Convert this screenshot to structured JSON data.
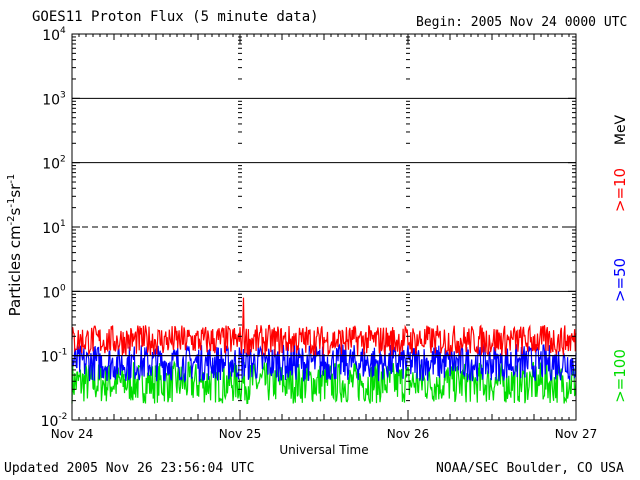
{
  "header": {
    "title": "GOES11 Proton Flux (5 minute data)",
    "begin": "Begin: 2005 Nov 24 0000 UTC"
  },
  "footer": {
    "updated": "Updated 2005 Nov 26 23:56:04 UTC",
    "credit": "NOAA/SEC Boulder, CO USA"
  },
  "chart_data": {
    "type": "line",
    "title": "GOES11 Proton Flux (5 minute data)",
    "xlabel": "Universal Time",
    "ylabel": "Particles cm^-2 s^-1 sr^-1",
    "yscale": "log",
    "ylim": [
      0.01,
      10000
    ],
    "y_tick_labels": [
      "10^-2",
      "10^-1",
      "10^0",
      "10^1",
      "10^2",
      "10^3",
      "10^4"
    ],
    "x_tick_labels": [
      "Nov 24",
      "Nov 25",
      "Nov 26",
      "Nov 27"
    ],
    "xlim": [
      "2005-11-24 00:00",
      "2005-11-27 00:00"
    ],
    "grid": "horizontal lines at each decade; dashed line at 10^1",
    "legend": {
      "unit": "MeV",
      "placement": "right, vertical",
      "entries": [
        {
          "label": ">=10",
          "color": "#ff0000"
        },
        {
          "label": ">=50",
          "color": "#0000ff"
        },
        {
          "label": ">=100",
          "color": "#00dd00"
        }
      ]
    },
    "series": [
      {
        "name": ">=10",
        "color": "#ff0000",
        "baseline": 0.15,
        "typical_range": [
          0.1,
          0.3
        ],
        "peak": 0.8
      },
      {
        "name": ">=50",
        "color": "#0000ff",
        "baseline": 0.07,
        "typical_range": [
          0.04,
          0.15
        ]
      },
      {
        "name": ">=100",
        "color": "#00dd00",
        "baseline": 0.04,
        "typical_range": [
          0.018,
          0.08
        ]
      }
    ]
  }
}
